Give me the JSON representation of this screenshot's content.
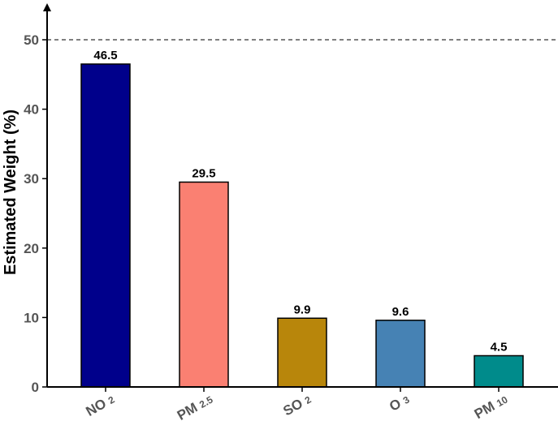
{
  "chart_data": {
    "type": "bar",
    "title": "",
    "xlabel": "",
    "ylabel": "Estimated Weight (%)",
    "ylim": [
      0,
      50
    ],
    "yticks": [
      0,
      10,
      20,
      30,
      40,
      50
    ],
    "grid": false,
    "legend": "none",
    "reference_line": {
      "y": 50,
      "style": "dashed"
    },
    "categories": [
      {
        "main": "NO",
        "sub": "2"
      },
      {
        "main": "PM",
        "sub": "2.5"
      },
      {
        "main": "SO",
        "sub": "2"
      },
      {
        "main": "O",
        "sub": "3"
      },
      {
        "main": "PM",
        "sub": "10"
      }
    ],
    "values": [
      46.5,
      29.5,
      9.9,
      9.6,
      4.5
    ],
    "value_labels": [
      "46.5",
      "29.5",
      "9.9",
      "9.6",
      "4.5"
    ],
    "colors": [
      "#00008b",
      "#fa8072",
      "#b8860b",
      "#4682b4",
      "#008b8b"
    ]
  }
}
